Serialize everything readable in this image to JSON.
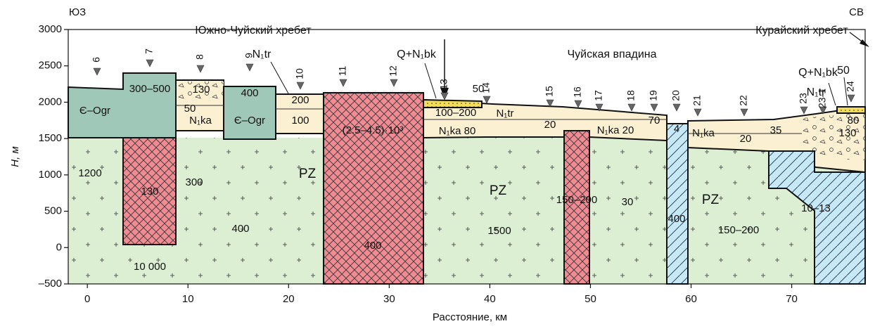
{
  "corners": {
    "left": "ЮЗ",
    "right": "СВ"
  },
  "axes": {
    "x_label": "Расстояние, км",
    "y_label": "H, м",
    "xlim": [
      -1.9,
      77.3
    ],
    "ylim": [
      -500,
      3000
    ],
    "xticks": [
      0,
      10,
      20,
      30,
      40,
      50,
      60,
      70
    ],
    "yticks": [
      {
        "value": -500,
        "label": "–500"
      },
      0,
      500,
      1000,
      1500,
      2000,
      2500,
      3000
    ]
  },
  "regions": [
    "Южно-Чуйский хребет",
    "Чуйская впадина",
    "Курайский хребет"
  ],
  "wells": [
    "6",
    "7",
    "8",
    "9",
    "10",
    "11",
    "12",
    "13",
    "14",
    "15",
    "16",
    "17",
    "18",
    "19",
    "20",
    "21",
    "22",
    "23",
    "23-1",
    "24"
  ],
  "annotations": [
    "N₁tr",
    "Q+N₁bk",
    "Q+N₁bk",
    "50",
    "N₁tr"
  ],
  "labels": [
    "300–500",
    "Є–Ogr",
    "130",
    "50",
    "N₁ka",
    "400",
    "Є–Ogr",
    "200",
    "100",
    "(2.5–4.5)·10³",
    "50",
    "100–200",
    "N₁tr",
    "20",
    "N₁ka 80",
    "N₁ka 20",
    "70",
    "4",
    "N₁ka",
    "35",
    "20",
    "80",
    "130",
    "1200",
    "130",
    "300",
    "PZ",
    "400",
    "10 000",
    "400",
    "PZ",
    "1500",
    "150–200",
    "30",
    "400",
    "PZ",
    "150–200",
    "10–13"
  ]
}
